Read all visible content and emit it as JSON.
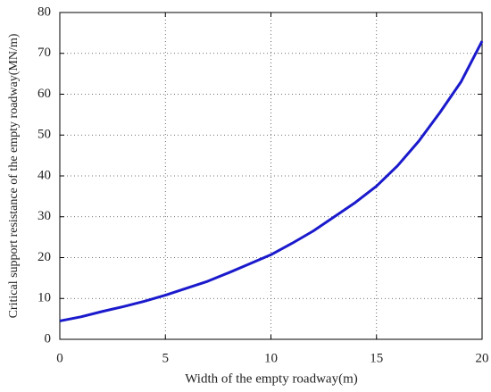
{
  "chart_data": {
    "type": "line",
    "xlabel": "Width of the empty roadway(m)",
    "ylabel": "Critical support resistance of the empty roadway(MN/m)",
    "x": [
      0,
      1,
      2,
      3,
      4,
      5,
      6,
      7,
      8,
      9,
      10,
      11,
      12,
      13,
      14,
      15,
      16,
      17,
      18,
      19,
      20
    ],
    "series": [
      {
        "color": "#1a1acc",
        "values": [
          4.5,
          5.5,
          6.8,
          8,
          9.3,
          10.8,
          12.5,
          14.2,
          16.3,
          18.5,
          20.7,
          23.5,
          26.5,
          30,
          33.5,
          37.5,
          42.5,
          48.5,
          55.5,
          63,
          73
        ]
      }
    ],
    "xlim": [
      0,
      20
    ],
    "xticks": [
      0,
      5,
      10,
      15,
      20
    ],
    "ylim": [
      0,
      80
    ],
    "yticks": [
      0,
      10,
      20,
      30,
      40,
      50,
      60,
      70,
      80
    ],
    "grid": true
  }
}
